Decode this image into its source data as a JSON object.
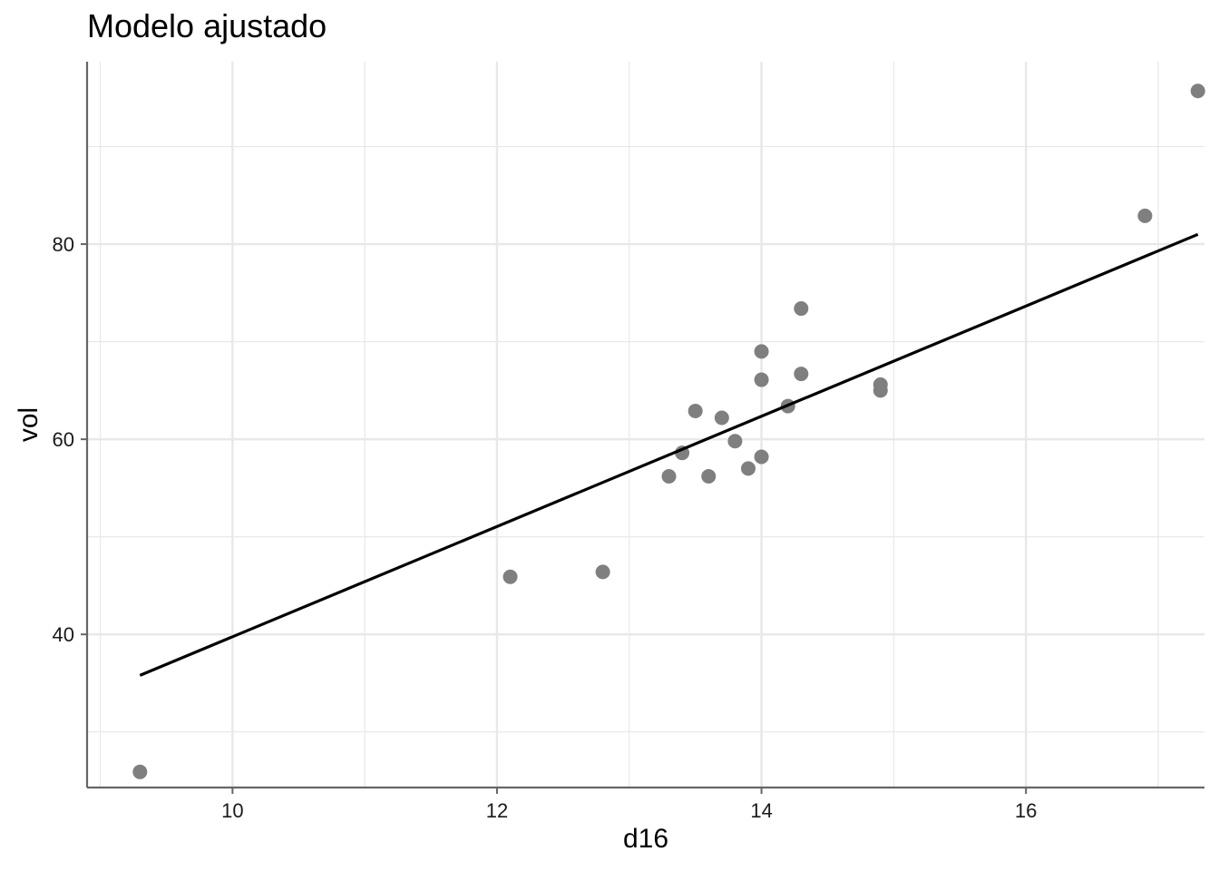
{
  "chart_data": {
    "type": "scatter",
    "title": "Modelo ajustado",
    "xlabel": "d16",
    "ylabel": "vol",
    "xlim": [
      8.9,
      17.35
    ],
    "ylim": [
      24.3,
      98.7
    ],
    "x_ticks": [
      10,
      12,
      14,
      16
    ],
    "y_ticks": [
      40,
      60,
      80
    ],
    "grid": true,
    "points": [
      {
        "x": 9.3,
        "y": 25.9
      },
      {
        "x": 12.1,
        "y": 45.9
      },
      {
        "x": 12.8,
        "y": 46.4
      },
      {
        "x": 13.3,
        "y": 56.2
      },
      {
        "x": 13.4,
        "y": 58.6
      },
      {
        "x": 13.5,
        "y": 62.9
      },
      {
        "x": 13.6,
        "y": 56.2
      },
      {
        "x": 13.7,
        "y": 62.2
      },
      {
        "x": 13.8,
        "y": 59.8
      },
      {
        "x": 13.9,
        "y": 57.0
      },
      {
        "x": 14.0,
        "y": 58.2
      },
      {
        "x": 14.0,
        "y": 66.1
      },
      {
        "x": 14.0,
        "y": 69.0
      },
      {
        "x": 14.2,
        "y": 63.4
      },
      {
        "x": 14.3,
        "y": 66.7
      },
      {
        "x": 14.3,
        "y": 73.4
      },
      {
        "x": 14.9,
        "y": 65.6
      },
      {
        "x": 14.9,
        "y": 65.0
      },
      {
        "x": 16.9,
        "y": 82.9
      },
      {
        "x": 17.3,
        "y": 95.7
      }
    ],
    "fit_line": {
      "x": [
        9.3,
        17.3
      ],
      "y": [
        35.8,
        81.0
      ]
    },
    "colors": {
      "points": "#7f7f7f",
      "line": "#000000",
      "grid": "#e8e8e8",
      "axis": "#666666"
    }
  }
}
